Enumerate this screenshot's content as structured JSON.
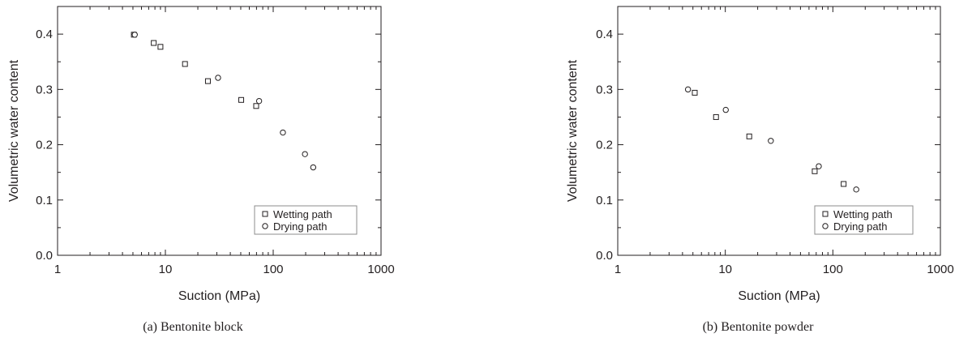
{
  "chart_data": [
    {
      "type": "scatter",
      "caption": "(a) Bentonite block",
      "xlabel": "Suction (MPa)",
      "ylabel": "Volumetric water content",
      "xscale": "log",
      "xlim": [
        1,
        1000
      ],
      "ylim": [
        0.0,
        0.45
      ],
      "x_ticks": [
        "1",
        "10",
        "100",
        "1000"
      ],
      "y_ticks": [
        "0.0",
        "0.1",
        "0.2",
        "0.3",
        "0.4"
      ],
      "grid": false,
      "legend_position": "bottom-right",
      "series": [
        {
          "name": "Wetting path",
          "marker": "square",
          "points": [
            [
              5.1,
              0.399
            ],
            [
              7.8,
              0.384
            ],
            [
              9.0,
              0.377
            ],
            [
              15.2,
              0.346
            ],
            [
              24.8,
              0.315
            ],
            [
              50.5,
              0.281
            ],
            [
              69.5,
              0.27
            ]
          ]
        },
        {
          "name": "Drying path",
          "marker": "circle",
          "points": [
            [
              5.2,
              0.399
            ],
            [
              30.8,
              0.321
            ],
            [
              74.0,
              0.279
            ],
            [
              123.0,
              0.222
            ],
            [
              197.0,
              0.183
            ],
            [
              235.0,
              0.159
            ]
          ]
        }
      ]
    },
    {
      "type": "scatter",
      "caption": "(b) Bentonite powder",
      "xlabel": "Suction (MPa)",
      "ylabel": "Volumetric water content",
      "xscale": "log",
      "xlim": [
        1,
        1000
      ],
      "ylim": [
        0.0,
        0.45
      ],
      "x_ticks": [
        "1",
        "10",
        "100",
        "1000"
      ],
      "y_ticks": [
        "0.0",
        "0.1",
        "0.2",
        "0.3",
        "0.4"
      ],
      "grid": false,
      "legend_position": "bottom-right",
      "series": [
        {
          "name": "Wetting path",
          "marker": "square",
          "points": [
            [
              5.2,
              0.294
            ],
            [
              8.2,
              0.25
            ],
            [
              16.7,
              0.215
            ],
            [
              67.8,
              0.152
            ],
            [
              126.0,
              0.129
            ]
          ]
        },
        {
          "name": "Drying path",
          "marker": "circle",
          "points": [
            [
              4.5,
              0.3
            ],
            [
              10.1,
              0.263
            ],
            [
              26.5,
              0.207
            ],
            [
              74.0,
              0.161
            ],
            [
              165.0,
              0.119
            ]
          ]
        }
      ]
    }
  ]
}
